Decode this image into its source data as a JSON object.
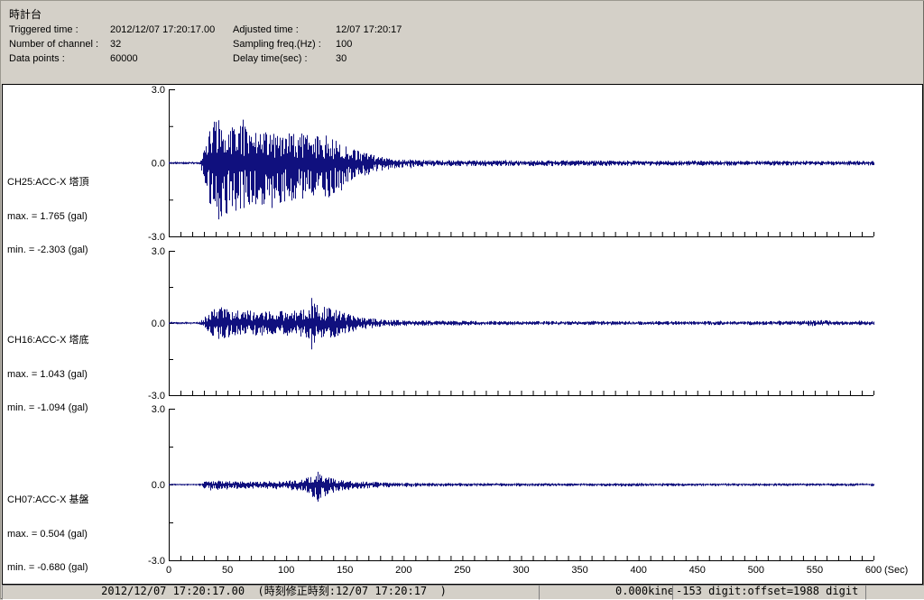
{
  "header": {
    "title": "時計台",
    "rows": [
      {
        "l1": "Triggered time :",
        "v1": "2012/12/07 17:20:17.00",
        "l2": "Adjusted time :",
        "v2": "12/07 17:20:17"
      },
      {
        "l1": "Number of channel :",
        "v1": "32",
        "l2": "Sampling freq.(Hz) :",
        "v2": "100"
      },
      {
        "l1": "Data points :",
        "v1": "60000",
        "l2": "Delay time(sec) :",
        "v2": "30"
      }
    ]
  },
  "chart_data": {
    "type": "line",
    "kind": "seismic-acceleration-waveforms",
    "x_unit_label": "(Sec)",
    "x_range": [
      0,
      600
    ],
    "x_major_ticks": [
      0,
      50,
      100,
      150,
      200,
      250,
      300,
      350,
      400,
      450,
      500,
      550,
      600
    ],
    "x_minor_tick_step": 10,
    "y_range": [
      -3.0,
      3.0
    ],
    "y_tick_labels": [
      "3.0",
      "0.0",
      "-3.0"
    ],
    "y_minor_ticks": [
      1.5,
      0,
      -1.5
    ],
    "line_color": "#10107e",
    "grid": false,
    "legend": false,
    "panels": [
      {
        "channel": "CH25:ACC-X 塔頂",
        "max_label": "max. = 1.765 (gal)",
        "min_label": "min. = -2.303 (gal)",
        "max": 1.765,
        "min": -2.303,
        "seed": 2525,
        "envelope": [
          [
            0,
            0.06
          ],
          [
            26,
            0.06
          ],
          [
            29,
            0.5
          ],
          [
            32,
            1.4
          ],
          [
            36,
            2.0
          ],
          [
            42,
            2.1
          ],
          [
            50,
            1.9
          ],
          [
            58,
            2.05
          ],
          [
            66,
            1.75
          ],
          [
            75,
            1.6
          ],
          [
            85,
            1.55
          ],
          [
            95,
            1.6
          ],
          [
            105,
            1.45
          ],
          [
            115,
            1.5
          ],
          [
            122,
            1.35
          ],
          [
            130,
            1.45
          ],
          [
            138,
            1.25
          ],
          [
            146,
            1.05
          ],
          [
            154,
            0.8
          ],
          [
            162,
            0.6
          ],
          [
            170,
            0.45
          ],
          [
            180,
            0.3
          ],
          [
            190,
            0.22
          ],
          [
            205,
            0.17
          ],
          [
            225,
            0.14
          ],
          [
            260,
            0.13
          ],
          [
            300,
            0.12
          ],
          [
            350,
            0.12
          ],
          [
            400,
            0.11
          ],
          [
            450,
            0.11
          ],
          [
            500,
            0.1
          ],
          [
            550,
            0.1
          ],
          [
            600,
            0.1
          ]
        ]
      },
      {
        "channel": "CH16:ACC-X 塔底",
        "max_label": "max. = 1.043 (gal)",
        "min_label": "min. = -1.094 (gal)",
        "max": 1.043,
        "min": -1.094,
        "seed": 1616,
        "envelope": [
          [
            0,
            0.05
          ],
          [
            25,
            0.05
          ],
          [
            29,
            0.15
          ],
          [
            33,
            0.45
          ],
          [
            38,
            0.62
          ],
          [
            44,
            0.68
          ],
          [
            52,
            0.55
          ],
          [
            62,
            0.52
          ],
          [
            72,
            0.56
          ],
          [
            82,
            0.5
          ],
          [
            92,
            0.5
          ],
          [
            102,
            0.52
          ],
          [
            112,
            0.55
          ],
          [
            118,
            0.62
          ],
          [
            121,
            1.05
          ],
          [
            124,
            0.8
          ],
          [
            129,
            0.75
          ],
          [
            135,
            0.65
          ],
          [
            141,
            0.58
          ],
          [
            148,
            0.48
          ],
          [
            156,
            0.35
          ],
          [
            164,
            0.26
          ],
          [
            173,
            0.2
          ],
          [
            185,
            0.15
          ],
          [
            200,
            0.12
          ],
          [
            230,
            0.1
          ],
          [
            270,
            0.09
          ],
          [
            310,
            0.08
          ],
          [
            350,
            0.08
          ],
          [
            390,
            0.09
          ],
          [
            430,
            0.08
          ],
          [
            470,
            0.08
          ],
          [
            510,
            0.08
          ],
          [
            545,
            0.1
          ],
          [
            555,
            0.13
          ],
          [
            565,
            0.09
          ],
          [
            600,
            0.08
          ]
        ]
      },
      {
        "channel": "CH07:ACC-X 基盤",
        "max_label": "max. = 0.504 (gal)",
        "min_label": "min. = -0.680 (gal)",
        "max": 0.504,
        "min": -0.68,
        "seed": 707,
        "envelope": [
          [
            0,
            0.04
          ],
          [
            25,
            0.04
          ],
          [
            30,
            0.15
          ],
          [
            38,
            0.21
          ],
          [
            46,
            0.19
          ],
          [
            55,
            0.17
          ],
          [
            65,
            0.16
          ],
          [
            75,
            0.16
          ],
          [
            85,
            0.17
          ],
          [
            95,
            0.18
          ],
          [
            104,
            0.2
          ],
          [
            112,
            0.26
          ],
          [
            118,
            0.34
          ],
          [
            123,
            0.5
          ],
          [
            127,
            0.62
          ],
          [
            131,
            0.48
          ],
          [
            136,
            0.35
          ],
          [
            142,
            0.28
          ],
          [
            150,
            0.22
          ],
          [
            158,
            0.17
          ],
          [
            168,
            0.14
          ],
          [
            180,
            0.11
          ],
          [
            195,
            0.09
          ],
          [
            220,
            0.08
          ],
          [
            260,
            0.07
          ],
          [
            300,
            0.07
          ],
          [
            350,
            0.06
          ],
          [
            400,
            0.07
          ],
          [
            450,
            0.06
          ],
          [
            500,
            0.06
          ],
          [
            550,
            0.06
          ],
          [
            600,
            0.06
          ]
        ]
      }
    ]
  },
  "status_bar": {
    "time_text": "2012/12/07 17:20:17.00  (時刻修正時刻:12/07 17:20:17  )",
    "kine_text": "0.000kine",
    "digit_text": "-153 digit:offset=1988 digit"
  }
}
